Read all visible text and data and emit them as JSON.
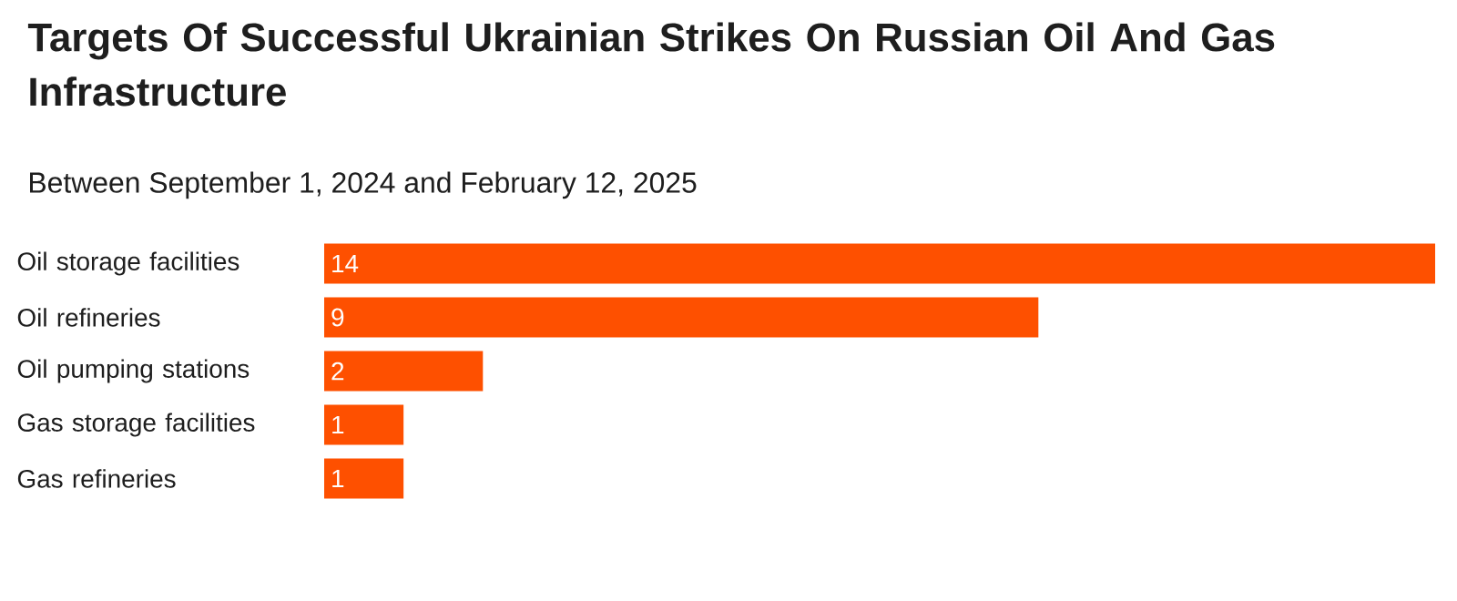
{
  "chart_data": {
    "type": "bar",
    "orientation": "horizontal",
    "title": "Targets Of Successful Ukrainian Strikes On Russian Oil And Gas Infrastructure",
    "subtitle": "Between September 1, 2024 and February 12, 2025",
    "categories": [
      "Oil storage facilities",
      "Oil refineries",
      "Oil pumping stations",
      "Gas storage facilities",
      "Gas refineries"
    ],
    "values": [
      14,
      9,
      2,
      1,
      1
    ],
    "color": "#fe5000",
    "data_labels": true
  }
}
